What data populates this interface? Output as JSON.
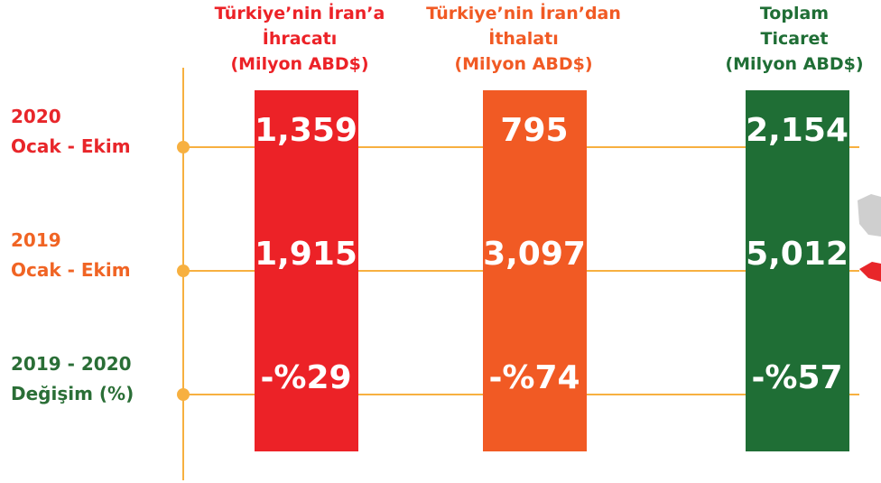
{
  "columns": [
    {
      "header": [
        "Türkiye’nin İran’a",
        "İhracatı",
        "(Milyon ABD$)"
      ],
      "color": "#ec2227"
    },
    {
      "header": [
        "Türkiye’nin İran’dan",
        "İthalatı",
        "(Milyon ABD$)"
      ],
      "color": "#f15a24"
    },
    {
      "header": [
        "Toplam",
        "Ticaret",
        "(Milyon ABD$)"
      ],
      "color": "#1f6e35"
    }
  ],
  "rows": [
    {
      "label": [
        "2020",
        "Ocak - Ekim"
      ],
      "color": "#e8262a",
      "values": [
        "1,359",
        "795",
        "2,154"
      ]
    },
    {
      "label": [
        "2019",
        "Ocak - Ekim"
      ],
      "color": "#f06424",
      "values": [
        "1,915",
        "3,097",
        "5,012"
      ]
    },
    {
      "label": [
        "2019 - 2020",
        "Değişim (%)"
      ],
      "color": "#2a6e36",
      "values": [
        "-%29",
        "-%74",
        "-%57"
      ]
    }
  ]
}
